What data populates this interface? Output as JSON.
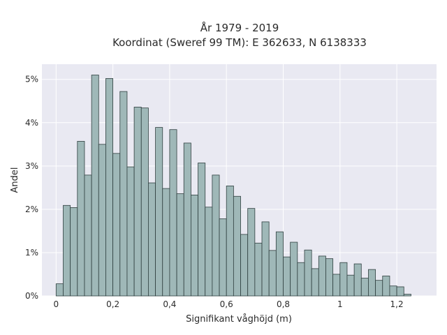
{
  "chart_data": {
    "type": "bar",
    "title": "År 1979 - 2019",
    "subtitle": "Koordinat (Sweref 99 TM): E 362633, N 6138333",
    "xlabel": "Signifikant våghöjd (m)",
    "ylabel": "Andel",
    "xlim": [
      -0.05,
      1.34
    ],
    "ylim": [
      0,
      0.0535
    ],
    "grid": true,
    "x_ticks": [
      0,
      0.2,
      0.4,
      0.6,
      0.8,
      1.0,
      1.2
    ],
    "x_tick_labels": [
      "0",
      "0,2",
      "0,4",
      "0,6",
      "0,8",
      "1",
      "1,2"
    ],
    "y_ticks": [
      0,
      0.01,
      0.02,
      0.03,
      0.04,
      0.05
    ],
    "y_tick_labels": [
      "0%",
      "1%",
      "2%",
      "3%",
      "4%",
      "5%"
    ],
    "bin_width": 0.025,
    "bin_start": 0.0125,
    "colors": {
      "bar_fill": "#9fb8b8",
      "bar_stroke": "#2f3f3f",
      "plot_bg": "#e9e9f2",
      "grid": "#ffffff"
    },
    "values": [
      0.0028,
      0.0209,
      0.0204,
      0.0357,
      0.0279,
      0.051,
      0.035,
      0.0502,
      0.0329,
      0.0472,
      0.0298,
      0.0436,
      0.0434,
      0.0261,
      0.0389,
      0.0248,
      0.0384,
      0.0236,
      0.0353,
      0.0233,
      0.0307,
      0.0205,
      0.0279,
      0.0178,
      0.0254,
      0.023,
      0.0142,
      0.0202,
      0.0122,
      0.0171,
      0.0105,
      0.0148,
      0.009,
      0.0124,
      0.0077,
      0.0106,
      0.0063,
      0.0092,
      0.0086,
      0.005,
      0.0077,
      0.0048,
      0.0074,
      0.0041,
      0.0061,
      0.0036,
      0.0046,
      0.0023,
      0.0021,
      0.0004
    ]
  }
}
